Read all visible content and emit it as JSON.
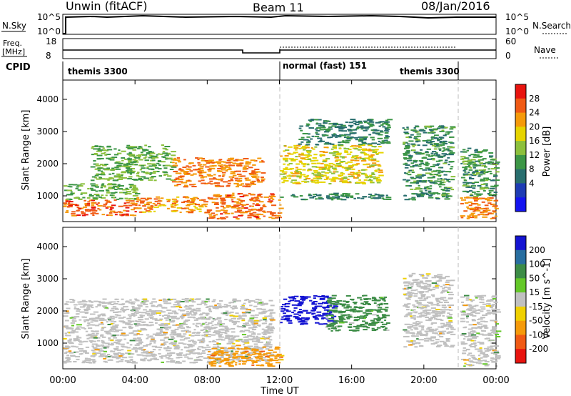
{
  "header": {
    "station": "Unwin (fitACF)",
    "beam": "Beam 11",
    "date": "08/Jan/2016"
  },
  "noise_panel": {
    "left_label": "N.Sky",
    "right_label": "N.Search",
    "left_ticks": [
      "10^5",
      "10^0"
    ],
    "right_ticks": [
      "10^5",
      "10^0"
    ]
  },
  "freq_panel": {
    "left_label_1": "Freq.",
    "left_label_2": "[MHz]",
    "right_label": "Nave",
    "left_ticks": [
      "18",
      "8"
    ],
    "right_ticks": [
      "60",
      "0"
    ]
  },
  "cpid_panel": {
    "label": "CPID",
    "segments": [
      {
        "name": "themis 3300",
        "start_hour": 0,
        "end_hour": 12
      },
      {
        "name": "normal (fast) 151",
        "start_hour": 12,
        "end_hour": 22
      },
      {
        "name": "themis 3300",
        "start_hour": 18.7,
        "end_hour": 22
      }
    ]
  },
  "chart_data": [
    {
      "type": "heatmap",
      "title": "",
      "xlabel": "",
      "ylabel": "Slant Range [km]",
      "xlim": [
        0,
        24
      ],
      "ylim": [
        200,
        4600
      ],
      "yticks": [
        1000,
        2000,
        3000,
        4000
      ],
      "colorbar": {
        "label": "Power [dB]",
        "ticks": [
          "28",
          "24",
          "20",
          "16",
          "12",
          "8",
          "4"
        ],
        "colors": [
          "#e8140f",
          "#f05a14",
          "#f59a0a",
          "#e6d400",
          "#8cc03c",
          "#3c9646",
          "#286e6e",
          "#1e3cb4",
          "#1414f0"
        ]
      },
      "scatter_regions": [
        {
          "t0": 0.0,
          "t1": 4.0,
          "r0": 400,
          "r1": 900,
          "value": 28
        },
        {
          "t0": 0.0,
          "t1": 4.0,
          "r0": 900,
          "r1": 1400,
          "value": 14
        },
        {
          "t0": 1.5,
          "t1": 6.0,
          "r0": 1500,
          "r1": 2600,
          "value": 14
        },
        {
          "t0": 4.0,
          "t1": 8.0,
          "r0": 500,
          "r1": 1000,
          "value": 24
        },
        {
          "t0": 6.0,
          "t1": 11.0,
          "r0": 1300,
          "r1": 2200,
          "value": 26
        },
        {
          "t0": 8.0,
          "t1": 12.0,
          "r0": 300,
          "r1": 1100,
          "value": 27
        },
        {
          "t0": 12.0,
          "t1": 17.5,
          "r0": 1400,
          "r1": 2600,
          "value": 20
        },
        {
          "t0": 12.0,
          "t1": 18.0,
          "r0": 900,
          "r1": 1100,
          "value": 10
        },
        {
          "t0": 13.0,
          "t1": 18.0,
          "r0": 2600,
          "r1": 3400,
          "value": 10
        },
        {
          "t0": 18.8,
          "t1": 21.5,
          "r0": 900,
          "r1": 3200,
          "value": 11
        },
        {
          "t0": 22.0,
          "t1": 24.0,
          "r0": 300,
          "r1": 1000,
          "value": 26
        },
        {
          "t0": 22.0,
          "t1": 24.0,
          "r0": 1000,
          "r1": 2500,
          "value": 12
        }
      ]
    },
    {
      "type": "heatmap",
      "title": "",
      "xlabel": "Time UT",
      "ylabel": "Slant Range [km]",
      "xlim": [
        0,
        24
      ],
      "ylim": [
        200,
        4600
      ],
      "yticks": [
        1000,
        2000,
        3000,
        4000
      ],
      "xticks": [
        "00:00",
        "04:00",
        "08:00",
        "12:00",
        "16:00",
        "20:00",
        "00:00"
      ],
      "colorbar": {
        "label": "Velocity [m s^-1]",
        "ticks": [
          "200",
          "100",
          "50",
          "15",
          "-15",
          "-50",
          "-100",
          "-200"
        ],
        "colors": [
          "#1414d2",
          "#286ea0",
          "#3c8c46",
          "#64c828",
          "#c0c0c0",
          "#f0d000",
          "#f59a0a",
          "#f05a14",
          "#e8140f"
        ]
      },
      "scatter_regions": [
        {
          "t0": 0.0,
          "t1": 11.5,
          "r0": 400,
          "r1": 2400,
          "value": 0
        },
        {
          "t0": 8.0,
          "t1": 12.0,
          "r0": 300,
          "r1": 900,
          "value": -60
        },
        {
          "t0": 12.0,
          "t1": 15.0,
          "r0": 1600,
          "r1": 2500,
          "value": 210
        },
        {
          "t0": 14.5,
          "t1": 18.0,
          "r0": 1400,
          "r1": 2500,
          "value": 40
        },
        {
          "t0": 18.8,
          "t1": 21.5,
          "r0": 900,
          "r1": 3200,
          "value": 0
        },
        {
          "t0": 22.0,
          "t1": 24.0,
          "r0": 300,
          "r1": 2500,
          "value": 0
        }
      ]
    }
  ]
}
